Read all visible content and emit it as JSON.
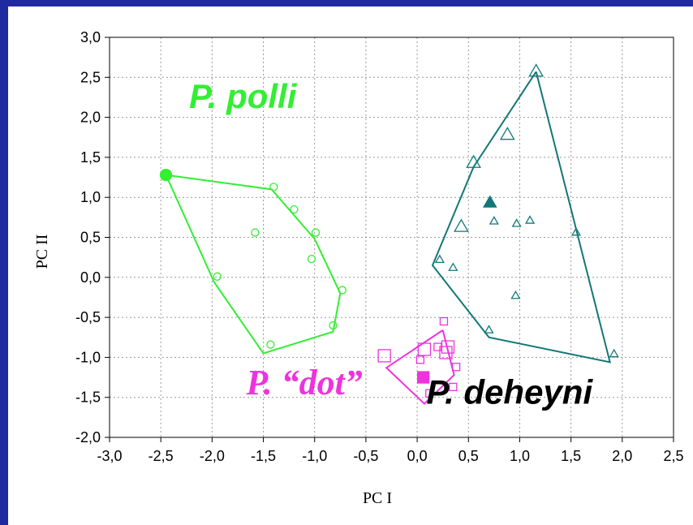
{
  "chart_data": {
    "type": "scatter",
    "xlabel": "PC I",
    "ylabel": "PC II",
    "xlim": [
      -3.0,
      2.5
    ],
    "ylim": [
      -2.0,
      3.0
    ],
    "xticks": [
      "-3,0",
      "-2,5",
      "-2,0",
      "-1,5",
      "-1,0",
      "-0,5",
      "0,0",
      "0,5",
      "1,0",
      "1,5",
      "2,0",
      "2,5"
    ],
    "yticks": [
      "3,0",
      "2,5",
      "2,0",
      "1,5",
      "1,0",
      "0,5",
      "0,0",
      "-0,5",
      "-1,0",
      "-1,5",
      "-2,0"
    ],
    "grid": true,
    "groups": [
      {
        "label": "P. polli",
        "color": "#33ee33",
        "marker": "circle",
        "label_pos": [
          -1.7,
          2.12
        ],
        "hull": [
          [
            -2.45,
            1.28
          ],
          [
            -1.42,
            1.1
          ],
          [
            -1.0,
            0.48
          ],
          [
            -0.75,
            -0.2
          ],
          [
            -0.82,
            -0.68
          ],
          [
            -1.5,
            -0.95
          ],
          [
            -1.98,
            -0.06
          ],
          [
            -2.45,
            1.28
          ]
        ],
        "points": [
          [
            -1.4,
            1.13
          ],
          [
            -1.2,
            0.85
          ],
          [
            -1.58,
            0.56
          ],
          [
            -0.99,
            0.56
          ],
          [
            -1.03,
            0.23
          ],
          [
            -1.95,
            0.01
          ],
          [
            -0.73,
            -0.16
          ],
          [
            -0.82,
            -0.6
          ],
          [
            -1.43,
            -0.84
          ]
        ],
        "large_points": [],
        "mean": [
          -2.45,
          1.28
        ]
      },
      {
        "label": "P. deheyni",
        "color": "#127777",
        "marker": "triangle",
        "label_pos": [
          0.9,
          -1.58
        ],
        "hull": [
          [
            1.16,
            2.57
          ],
          [
            0.55,
            1.38
          ],
          [
            0.15,
            0.15
          ],
          [
            0.7,
            -0.75
          ],
          [
            1.88,
            -1.06
          ],
          [
            1.16,
            2.57
          ]
        ],
        "points": [
          [
            0.75,
            0.7
          ],
          [
            0.97,
            0.67
          ],
          [
            1.1,
            0.71
          ],
          [
            1.55,
            0.56
          ],
          [
            0.22,
            0.22
          ],
          [
            0.35,
            0.12
          ],
          [
            0.96,
            -0.23
          ],
          [
            0.7,
            -0.66
          ],
          [
            1.92,
            -0.96
          ]
        ],
        "large_points": [
          [
            1.16,
            2.57
          ],
          [
            0.88,
            1.78
          ],
          [
            0.55,
            1.43
          ],
          [
            0.43,
            0.63
          ]
        ],
        "mean": [
          0.71,
          0.93
        ]
      },
      {
        "label": "P. “dot”",
        "color": "#ee33dd",
        "marker": "square",
        "label_pos": [
          -1.1,
          -1.46
        ],
        "hull": [
          [
            0.25,
            -0.66
          ],
          [
            -0.3,
            -1.13
          ],
          [
            0.07,
            -1.58
          ],
          [
            0.36,
            -1.22
          ],
          [
            0.25,
            -0.66
          ]
        ],
        "points": [
          [
            0.26,
            -0.55
          ],
          [
            0.2,
            -0.87
          ],
          [
            0.03,
            -1.03
          ],
          [
            0.38,
            -1.12
          ],
          [
            0.35,
            -1.37
          ],
          [
            0.12,
            -1.45
          ]
        ],
        "large_points": [
          [
            -0.32,
            -0.98
          ],
          [
            0.07,
            -0.9
          ],
          [
            0.3,
            -0.87
          ],
          [
            0.28,
            -0.94
          ]
        ],
        "mean": [
          0.06,
          -1.25
        ]
      }
    ]
  }
}
